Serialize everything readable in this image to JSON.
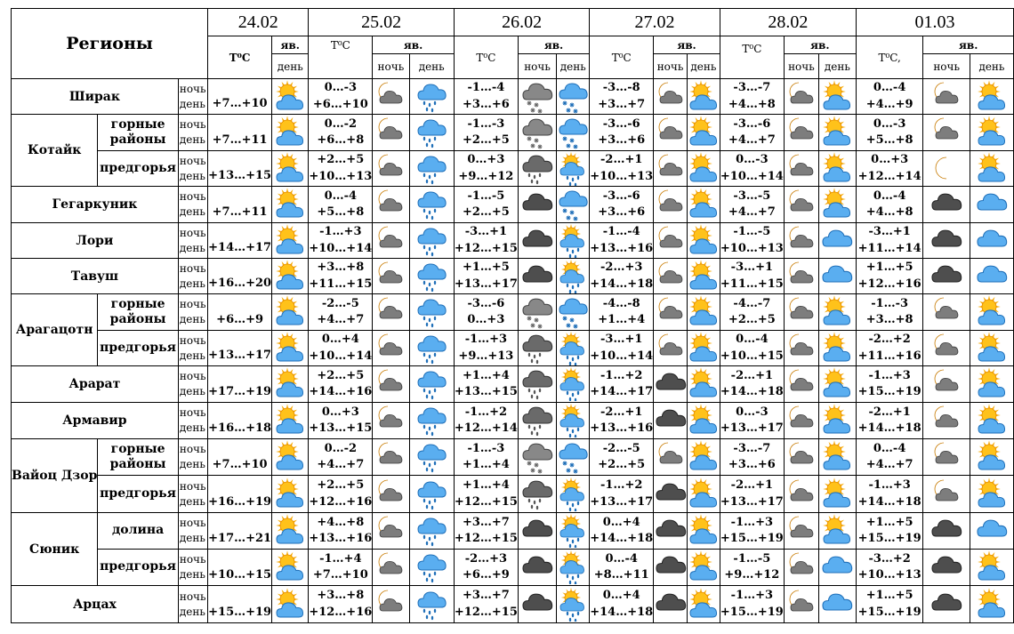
{
  "header": {
    "regions_title": "Регионы",
    "dates": [
      "24.02",
      "25.02",
      "26.02",
      "27.02",
      "28.02",
      "01.03"
    ],
    "temp_labels": [
      "T⁰C",
      "T⁰C",
      "T⁰C",
      "T⁰C",
      "T⁰C",
      "T⁰C,"
    ],
    "phenomena_label": "яв.",
    "night_label": "ночь",
    "day_label": "день"
  },
  "icon_legend": {
    "sun_cloud": "sun-cloud-icon",
    "sun_cloud_rain": "sun-cloud-rain-icon",
    "moon_cloud": "moon-cloud-icon",
    "cloud_rain": "cloud-rain-icon",
    "snow_cloud": "snow-cloud-icon",
    "dark_snow": "dark-snow-icon",
    "dark_rain": "dark-rain-icon",
    "moon": "moon-icon",
    "dark_cloud": "dark-cloud-icon",
    "blue_cloud": "blue-cloud-icon"
  },
  "rows": [
    {
      "region": "Ширак",
      "sub": "",
      "night": "ночь",
      "day": "день",
      "d1": "+7…+10",
      "i1": "sun_cloud",
      "n2": "0…-3",
      "d2": "+6…+10",
      "in2": "moon_cloud",
      "id2": "cloud_rain",
      "n3": "-1…-4",
      "d3": "+3…+6",
      "in3": "dark_snow",
      "id3": "snow_cloud",
      "n4": "-3…-8",
      "d4": "+3…+7",
      "in4": "moon_cloud",
      "id4": "sun_cloud",
      "n5": "-3…-7",
      "d5": "+4…+8",
      "in5": "moon_cloud",
      "id5": "sun_cloud",
      "n6": "0…-4",
      "d6": "+4…+9",
      "in6": "moon_cloud",
      "id6": "sun_cloud"
    },
    {
      "region": "Котайк",
      "sub": "горные районы",
      "night": "ночь",
      "day": "день",
      "d1": "+7…+11",
      "i1": "sun_cloud",
      "n2": "0…-2",
      "d2": "+6…+8",
      "in2": "moon_cloud",
      "id2": "cloud_rain",
      "n3": "-1…-3",
      "d3": "+2…+5",
      "in3": "dark_snow",
      "id3": "snow_cloud",
      "n4": "-3…-6",
      "d4": "+3…+6",
      "in4": "moon_cloud",
      "id4": "sun_cloud",
      "n5": "-3…-6",
      "d5": "+4…+7",
      "in5": "moon_cloud",
      "id5": "sun_cloud",
      "n6": "0…-3",
      "d6": "+5…+8",
      "in6": "moon_cloud",
      "id6": "sun_cloud"
    },
    {
      "region": "",
      "sub": "предгорья",
      "night": "ночь",
      "day": "день",
      "d1": "+13…+15",
      "i1": "sun_cloud",
      "n2": "+2…+5",
      "d2": "+10…+13",
      "in2": "moon_cloud",
      "id2": "cloud_rain",
      "n3": "0…+3",
      "d3": "+9…+12",
      "in3": "dark_rain",
      "id3": "sun_cloud_rain",
      "n4": "-2…+1",
      "d4": "+10…+13",
      "in4": "moon_cloud",
      "id4": "sun_cloud",
      "n5": "0…-3",
      "d5": "+10…+14",
      "in5": "moon_cloud",
      "id5": "sun_cloud",
      "n6": "0…+3",
      "d6": "+12…+14",
      "in6": "moon",
      "id6": "sun_cloud"
    },
    {
      "region": "Гегаркуник",
      "sub": "",
      "night": "ночь",
      "day": "день",
      "d1": "+7…+11",
      "i1": "sun_cloud",
      "n2": "0…-4",
      "d2": "+5…+8",
      "in2": "moon_cloud",
      "id2": "cloud_rain",
      "n3": "-1…-5",
      "d3": "+2…+5",
      "in3": "dark_cloud",
      "id3": "snow_cloud",
      "n4": "-3…-6",
      "d4": "+3…+6",
      "in4": "moon_cloud",
      "id4": "sun_cloud",
      "n5": "-3…-5",
      "d5": "+4…+7",
      "in5": "moon_cloud",
      "id5": "sun_cloud",
      "n6": "0…-4",
      "d6": "+4…+8",
      "in6": "dark_cloud",
      "id6": "blue_cloud"
    },
    {
      "region": "Лори",
      "sub": "",
      "night": "ночь",
      "day": "день",
      "d1": "+14…+17",
      "i1": "sun_cloud",
      "n2": "-1…+3",
      "d2": "+10…+14",
      "in2": "moon_cloud",
      "id2": "cloud_rain",
      "n3": "-3…+1",
      "d3": "+12…+15",
      "in3": "dark_cloud",
      "id3": "sun_cloud_rain",
      "n4": "-1…-4",
      "d4": "+13…+16",
      "in4": "moon_cloud",
      "id4": "sun_cloud",
      "n5": "-1…-5",
      "d5": "+10…+13",
      "in5": "moon_cloud",
      "id5": "blue_cloud",
      "n6": "-3…+1",
      "d6": "+11…+14",
      "in6": "dark_cloud",
      "id6": "blue_cloud"
    },
    {
      "region": "Тавуш",
      "sub": "",
      "night": "ночь",
      "day": "день",
      "d1": "+16…+20",
      "i1": "sun_cloud",
      "n2": "+3…+8",
      "d2": "+11…+15",
      "in2": "moon_cloud",
      "id2": "cloud_rain",
      "n3": "+1…+5",
      "d3": "+13…+17",
      "in3": "dark_cloud",
      "id3": "sun_cloud_rain",
      "n4": "-2…+3",
      "d4": "+14…+18",
      "in4": "moon_cloud",
      "id4": "sun_cloud",
      "n5": "-3…+1",
      "d5": "+11…+15",
      "in5": "moon_cloud",
      "id5": "blue_cloud",
      "n6": "+1…+5",
      "d6": "+12…+16",
      "in6": "dark_cloud",
      "id6": "blue_cloud"
    },
    {
      "region": "Арагацотн",
      "sub": "горные районы",
      "night": "ночь",
      "day": "день",
      "d1": "+6…+9",
      "i1": "sun_cloud",
      "n2": "-2…-5",
      "d2": "+4…+7",
      "in2": "moon_cloud",
      "id2": "cloud_rain",
      "n3": "-3…-6",
      "d3": "0…+3",
      "in3": "dark_snow",
      "id3": "snow_cloud",
      "n4": "-4…-8",
      "d4": "+1…+4",
      "in4": "moon_cloud",
      "id4": "sun_cloud",
      "n5": "-4…-7",
      "d5": "+2…+5",
      "in5": "moon_cloud",
      "id5": "sun_cloud",
      "n6": "-1…-3",
      "d6": "+3…+8",
      "in6": "moon_cloud",
      "id6": "sun_cloud"
    },
    {
      "region": "",
      "sub": "предгорья",
      "night": "ночь",
      "day": "день",
      "d1": "+13…+17",
      "i1": "sun_cloud",
      "n2": "0…+4",
      "d2": "+10…+14",
      "in2": "moon_cloud",
      "id2": "cloud_rain",
      "n3": "-1…+3",
      "d3": "+9…+13",
      "in3": "dark_rain",
      "id3": "sun_cloud_rain",
      "n4": "-3…+1",
      "d4": "+10…+14",
      "in4": "moon_cloud",
      "id4": "sun_cloud",
      "n5": "0…-4",
      "d5": "+10…+15",
      "in5": "moon_cloud",
      "id5": "sun_cloud",
      "n6": "-2…+2",
      "d6": "+11…+16",
      "in6": "moon_cloud",
      "id6": "sun_cloud"
    },
    {
      "region": "Арарат",
      "sub": "",
      "night": "ночь",
      "day": "день",
      "d1": "+17…+19",
      "i1": "sun_cloud",
      "n2": "+2…+5",
      "d2": "+14…+16",
      "in2": "moon_cloud",
      "id2": "cloud_rain",
      "n3": "+1…+4",
      "d3": "+13…+15",
      "in3": "dark_rain",
      "id3": "sun_cloud_rain",
      "n4": "-1…+2",
      "d4": "+14…+17",
      "in4": "dark_cloud",
      "id4": "sun_cloud",
      "n5": "-2…+1",
      "d5": "+14…+18",
      "in5": "moon_cloud",
      "id5": "sun_cloud",
      "n6": "-1…+3",
      "d6": "+15…+19",
      "in6": "moon_cloud",
      "id6": "sun_cloud"
    },
    {
      "region": "Армавир",
      "sub": "",
      "night": "ночь",
      "day": "день",
      "d1": "+16…+18",
      "i1": "sun_cloud",
      "n2": "0…+3",
      "d2": "+13…+15",
      "in2": "moon_cloud",
      "id2": "cloud_rain",
      "n3": "-1…+2",
      "d3": "+12…+14",
      "in3": "dark_rain",
      "id3": "sun_cloud_rain",
      "n4": "-2…+1",
      "d4": "+13…+16",
      "in4": "dark_cloud",
      "id4": "sun_cloud",
      "n5": "0…-3",
      "d5": "+13…+17",
      "in5": "moon_cloud",
      "id5": "sun_cloud",
      "n6": "-2…+1",
      "d6": "+14…+18",
      "in6": "moon_cloud",
      "id6": "sun_cloud"
    },
    {
      "region": "Вайоц Дзор",
      "sub": "горные районы",
      "night": "ночь",
      "day": "день",
      "d1": "+7…+10",
      "i1": "sun_cloud",
      "n2": "0…-2",
      "d2": "+4…+7",
      "in2": "moon_cloud",
      "id2": "cloud_rain",
      "n3": "-1…-3",
      "d3": "+1…+4",
      "in3": "dark_snow",
      "id3": "snow_cloud",
      "n4": "-2…-5",
      "d4": "+2…+5",
      "in4": "moon_cloud",
      "id4": "sun_cloud",
      "n5": "-3…-7",
      "d5": "+3…+6",
      "in5": "moon_cloud",
      "id5": "sun_cloud",
      "n6": "0…-4",
      "d6": "+4…+7",
      "in6": "moon_cloud",
      "id6": "sun_cloud"
    },
    {
      "region": "",
      "sub": "предгорья",
      "night": "ночь",
      "day": "день",
      "d1": "+16…+19",
      "i1": "sun_cloud",
      "n2": "+2…+5",
      "d2": "+12…+16",
      "in2": "moon_cloud",
      "id2": "cloud_rain",
      "n3": "+1…+4",
      "d3": "+12…+15",
      "in3": "dark_rain",
      "id3": "sun_cloud_rain",
      "n4": "-1…+2",
      "d4": "+13…+17",
      "in4": "dark_cloud",
      "id4": "sun_cloud",
      "n5": "-2…+1",
      "d5": "+13…+17",
      "in5": "moon_cloud",
      "id5": "sun_cloud",
      "n6": "-1…+3",
      "d6": "+14…+18",
      "in6": "moon_cloud",
      "id6": "sun_cloud"
    },
    {
      "region": "Сюник",
      "sub": "долина",
      "night": "ночь",
      "day": "день",
      "d1": "+17…+21",
      "i1": "sun_cloud",
      "n2": "+4…+8",
      "d2": "+13…+16",
      "in2": "moon_cloud",
      "id2": "cloud_rain",
      "n3": "+3…+7",
      "d3": "+12…+15",
      "in3": "dark_cloud",
      "id3": "sun_cloud_rain",
      "n4": "0…+4",
      "d4": "+14…+18",
      "in4": "dark_cloud",
      "id4": "sun_cloud",
      "n5": "-1…+3",
      "d5": "+15…+19",
      "in5": "moon_cloud",
      "id5": "sun_cloud",
      "n6": "+1…+5",
      "d6": "+15…+19",
      "in6": "dark_cloud",
      "id6": "blue_cloud"
    },
    {
      "region": "",
      "sub": "предгорья",
      "night": "ночь",
      "day": "день",
      "d1": "+10…+15",
      "i1": "sun_cloud",
      "n2": "-1…+4",
      "d2": "+7…+10",
      "in2": "moon_cloud",
      "id2": "cloud_rain",
      "n3": "-2…+3",
      "d3": "+6…+9",
      "in3": "dark_cloud",
      "id3": "sun_cloud_rain",
      "n4": "0…-4",
      "d4": "+8…+11",
      "in4": "dark_cloud",
      "id4": "sun_cloud",
      "n5": "-1…-5",
      "d5": "+9…+12",
      "in5": "moon_cloud",
      "id5": "blue_cloud",
      "n6": "-3…+2",
      "d6": "+10…+13",
      "in6": "dark_cloud",
      "id6": "sun_cloud"
    },
    {
      "region": "Арцах",
      "sub": "",
      "night": "ночь",
      "day": "день",
      "d1": "+15…+19",
      "i1": "sun_cloud",
      "n2": "+3…+8",
      "d2": "+12…+16",
      "in2": "moon_cloud",
      "id2": "cloud_rain",
      "n3": "+3…+7",
      "d3": "+12…+15",
      "in3": "dark_cloud",
      "id3": "sun_cloud_rain",
      "n4": "0…+4",
      "d4": "+14…+18",
      "in4": "dark_cloud",
      "id4": "sun_cloud",
      "n5": "-1…+3",
      "d5": "+15…+19",
      "in5": "moon_cloud",
      "id5": "blue_cloud",
      "n6": "+1…+5",
      "d6": "+15…+19",
      "in6": "dark_cloud",
      "id6": "sun_cloud"
    }
  ]
}
